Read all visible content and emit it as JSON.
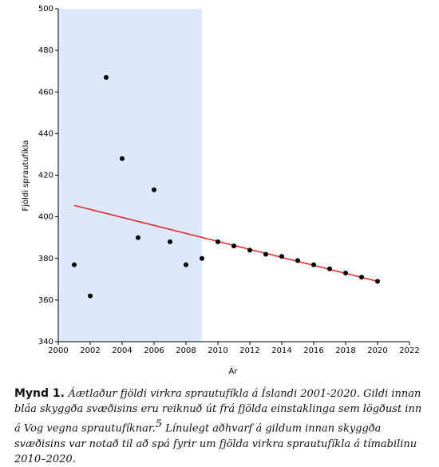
{
  "chart_data": {
    "type": "scatter",
    "x": [
      2001,
      2002,
      2003,
      2004,
      2005,
      2006,
      2007,
      2008,
      2009,
      2010,
      2011,
      2012,
      2013,
      2014,
      2015,
      2016,
      2017,
      2018,
      2019,
      2020
    ],
    "values": [
      377,
      362,
      467,
      428,
      390,
      413,
      388,
      377,
      380,
      388,
      386,
      384,
      382,
      381,
      379,
      377,
      375,
      373,
      371,
      369
    ],
    "color": "#000000",
    "trendline": {
      "x": [
        2001,
        2020
      ],
      "values": [
        405.5,
        369
      ],
      "color": "#e0201a"
    },
    "shaded_x": [
      2000,
      2009
    ],
    "shade_color": "#dde9fa",
    "xlim": [
      2000,
      2022
    ],
    "xticks": [
      2000,
      2002,
      2004,
      2006,
      2008,
      2010,
      2012,
      2014,
      2016,
      2018,
      2020,
      2022
    ],
    "ylim": [
      340,
      500
    ],
    "yticks": [
      340,
      360,
      380,
      400,
      420,
      440,
      460,
      480,
      500
    ],
    "xlabel": "Ár",
    "ylabel": "Fjöldi sprautufíkla",
    "caption": {
      "label": "Mynd 1.",
      "text": "Áætlaður fjöldi virkra sprautufíkla á Íslandi 2001-2020. Gildi innan bláa skyggða svæðisins eru reiknuð út frá fjölda einstaklinga sem lögðust inn á Vog vegna sprautufíknar.",
      "footnote": "5",
      "text2": " Línulegt aðhvarf á gildum innan skyggða svæðisins var notað til að spá fyrir um fjölda virkra sprautufíkla á tímabilinu 2010–2020."
    }
  }
}
